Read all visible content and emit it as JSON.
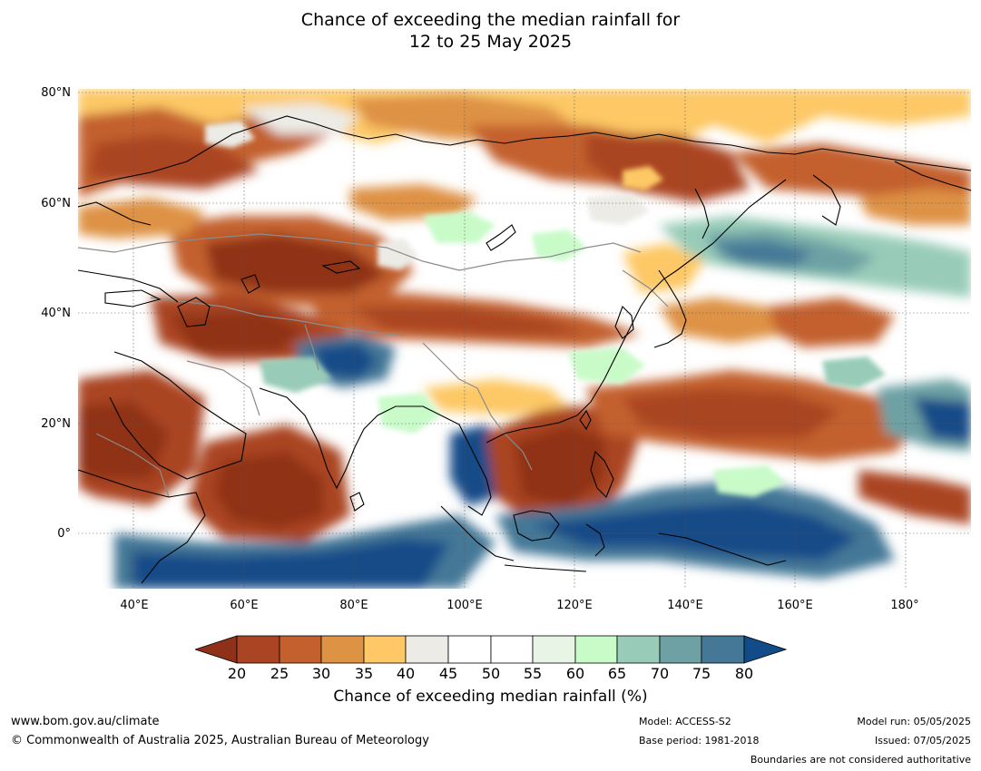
{
  "title": {
    "line1": "Chance of exceeding the median rainfall for",
    "line2": "12 to 25 May 2025"
  },
  "map": {
    "lat_labels": [
      "80°N",
      "60°N",
      "40°N",
      "20°N",
      "0°"
    ],
    "lon_labels": [
      "40°E",
      "60°E",
      "80°E",
      "100°E",
      "120°E",
      "140°E",
      "160°E",
      "180°"
    ],
    "lat_range": [
      -10,
      80
    ],
    "lon_range": [
      30,
      192
    ]
  },
  "legend": {
    "ticks": [
      "20",
      "25",
      "30",
      "35",
      "40",
      "45",
      "50",
      "55",
      "60",
      "65",
      "70",
      "75",
      "80"
    ],
    "label": "Chance of exceeding median rainfall (%)",
    "colors": {
      "below20": "#8f3019",
      "20-25": "#aa4422",
      "25-30": "#c3602e",
      "30-35": "#de9244",
      "35-40": "#fdc865",
      "40-45": "#ecebe6",
      "45-50": "#ffffff",
      "50-55": "#ffffff",
      "55-60": "#e8f5e6",
      "60-65": "#c9fbc9",
      "65-70": "#98ccb8",
      "70-75": "#6da1a4",
      "75-80": "#457897",
      "above80": "#124c88"
    }
  },
  "footer": {
    "url": "www.bom.gov.au/climate",
    "copyright": "© Commonwealth of Australia 2025, Australian Bureau of Meteorology",
    "model": "Model: ACCESS-S2",
    "base_period": "Base period: 1981-2018",
    "model_run": "Model run: 05/05/2025",
    "issued": "Issued: 07/05/2025",
    "disclaimer": "Boundaries are not considered authoritative"
  }
}
